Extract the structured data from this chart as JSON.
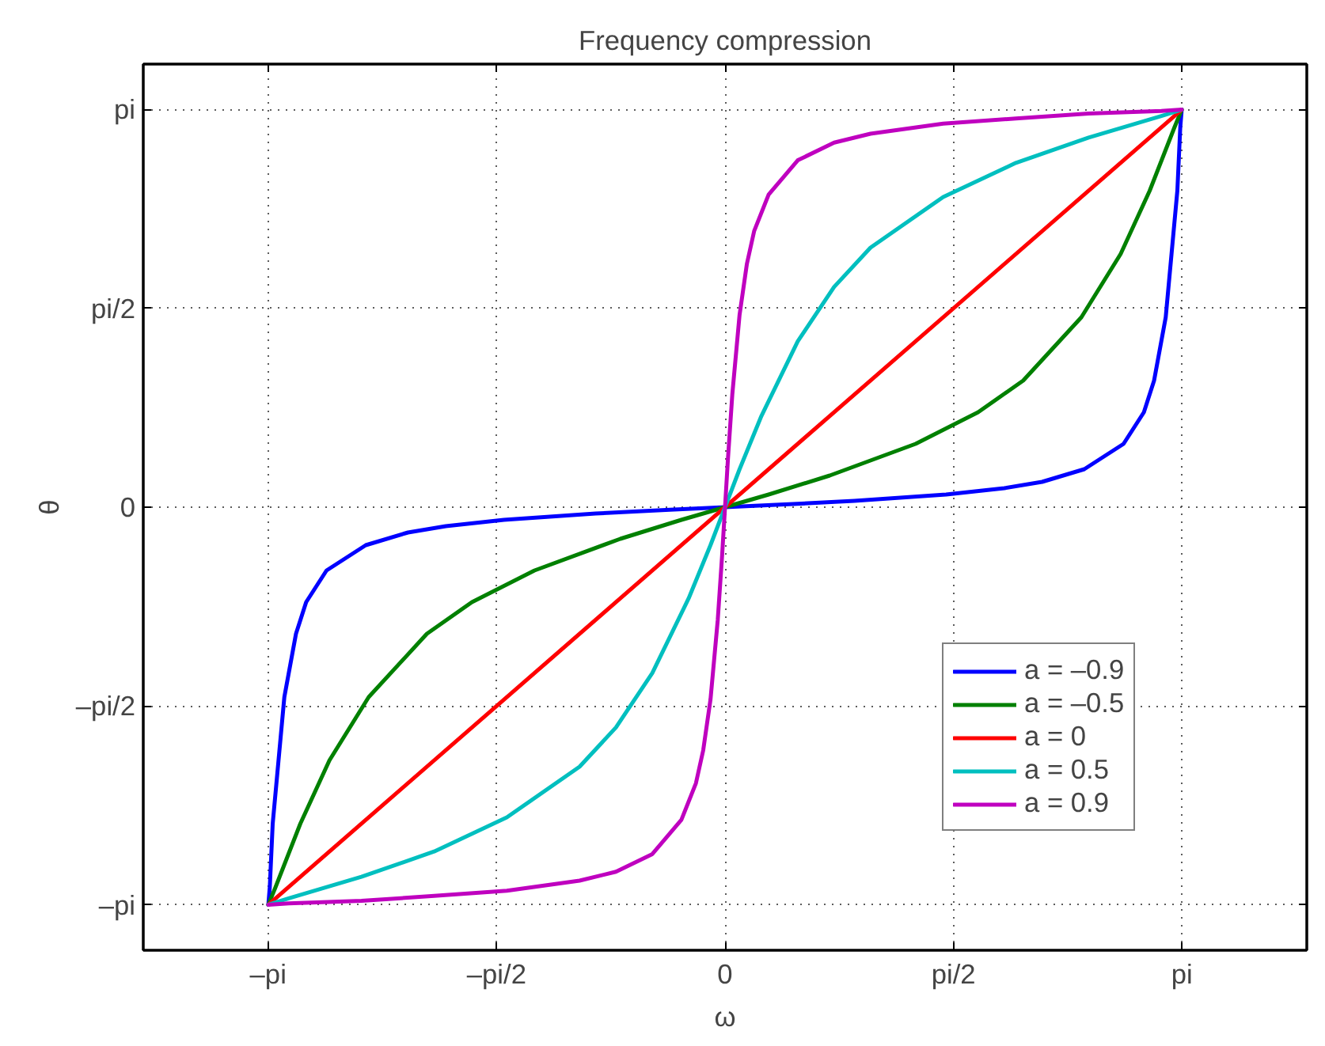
{
  "chart_data": {
    "type": "line",
    "title": "Frequency compression",
    "xlabel": "ω",
    "ylabel": "θ",
    "xlim": [
      -4,
      4
    ],
    "ylim": [
      -3.5,
      3.5
    ],
    "xticks": [
      {
        "value": -3.1416,
        "label": "–pi"
      },
      {
        "value": -1.5708,
        "label": "–pi/2"
      },
      0,
      {
        "value": 1.5708,
        "label": "pi/2"
      },
      {
        "value": 3.1416,
        "label": "pi"
      }
    ],
    "yticks": [
      {
        "value": -3.1416,
        "label": "–pi"
      },
      {
        "value": -1.5708,
        "label": "–pi/2"
      },
      0,
      {
        "value": 1.5708,
        "label": "pi/2"
      },
      {
        "value": 3.1416,
        "label": "pi"
      }
    ],
    "grid": true,
    "legend": "bottom right",
    "line_style": "solid",
    "series": [
      {
        "name": "a = –0.9",
        "color": "#0000ff",
        "x": [
          -3.14,
          -3.13,
          -3.11,
          -3.07,
          -3.03,
          -2.95,
          -2.88,
          -2.74,
          -2.47,
          -2.18,
          -1.92,
          -1.52,
          -0.89,
          -0.38,
          0,
          0.38,
          0.89,
          1.52,
          1.92,
          2.18,
          2.47,
          2.74,
          2.88,
          2.95,
          3.03,
          3.07,
          3.11,
          3.13,
          3.14
        ],
        "values": [
          -3.14,
          -3,
          -2.5,
          -2,
          -1.5,
          -1,
          -0.75,
          -0.5,
          -0.3,
          -0.2,
          -0.15,
          -0.1,
          -0.05,
          -0.02,
          0,
          0.02,
          0.05,
          0.1,
          0.15,
          0.2,
          0.3,
          0.5,
          0.75,
          1,
          1.5,
          2,
          2.5,
          3,
          3.14
        ]
      },
      {
        "name": "a = –0.5",
        "color": "#008000",
        "x": [
          -3.14,
          -3.09,
          -2.92,
          -2.72,
          -2.45,
          -2.05,
          -1.74,
          -1.31,
          -0.72,
          -0.3,
          0,
          0.3,
          0.72,
          1.31,
          1.74,
          2.05,
          2.45,
          2.72,
          2.92,
          3.09,
          3.14
        ],
        "values": [
          -3.14,
          -3,
          -2.5,
          -2,
          -1.5,
          -1,
          -0.75,
          -0.5,
          -0.25,
          -0.1,
          0,
          0.1,
          0.25,
          0.5,
          0.75,
          1,
          1.5,
          2,
          2.5,
          3,
          3.14
        ]
      },
      {
        "name": "a = 0",
        "color": "#ff0000",
        "x": [
          -3.14,
          3.14
        ],
        "values": [
          -3.14,
          3.14
        ]
      },
      {
        "name": "a = 0.5",
        "color": "#00bfbf",
        "x": [
          -3.14,
          -3,
          -2.5,
          -2,
          -1.5,
          -1,
          -0.75,
          -0.5,
          -0.25,
          -0.1,
          0,
          0.1,
          0.25,
          0.5,
          0.75,
          1,
          1.5,
          2,
          2.5,
          3,
          3.14
        ],
        "values": [
          -3.14,
          -3.09,
          -2.92,
          -2.72,
          -2.45,
          -2.05,
          -1.74,
          -1.31,
          -0.72,
          -0.3,
          0,
          0.3,
          0.72,
          1.31,
          1.74,
          2.05,
          2.45,
          2.72,
          2.92,
          3.09,
          3.14
        ]
      },
      {
        "name": "a = 0.9",
        "color": "#bf00bf",
        "x": [
          -3.14,
          -3,
          -2.5,
          -2,
          -1.5,
          -1,
          -0.75,
          -0.5,
          -0.3,
          -0.2,
          -0.15,
          -0.1,
          -0.05,
          -0.02,
          0,
          0.02,
          0.05,
          0.1,
          0.15,
          0.2,
          0.3,
          0.5,
          0.75,
          1,
          1.5,
          2,
          2.5,
          3,
          3.14
        ],
        "values": [
          -3.14,
          -3.13,
          -3.11,
          -3.07,
          -3.03,
          -2.95,
          -2.88,
          -2.74,
          -2.47,
          -2.18,
          -1.92,
          -1.52,
          -0.89,
          -0.38,
          0,
          0.38,
          0.89,
          1.52,
          1.92,
          2.18,
          2.47,
          2.74,
          2.88,
          2.95,
          3.03,
          3.07,
          3.11,
          3.13,
          3.14
        ]
      }
    ]
  }
}
